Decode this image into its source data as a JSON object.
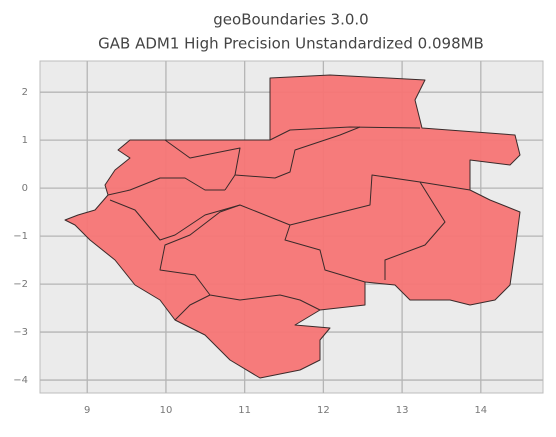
{
  "chart_data": {
    "type": "map",
    "title": "geoBoundaries 3.0.0",
    "subtitle": "GAB ADM1 High Precision Unstandardized 0.098MB",
    "xlim": [
      8.4,
      14.79
    ],
    "ylim": [
      -4.27,
      2.65
    ],
    "xticks": [
      9,
      10,
      11,
      12,
      13,
      14
    ],
    "yticks": [
      2,
      1,
      0,
      {
        "value": -1,
        "label": "−1"
      },
      {
        "value": -2,
        "label": "−2"
      },
      {
        "value": -3,
        "label": "−3"
      },
      {
        "value": -4,
        "label": "−4"
      }
    ],
    "grid": true,
    "color": "#f77575"
  }
}
